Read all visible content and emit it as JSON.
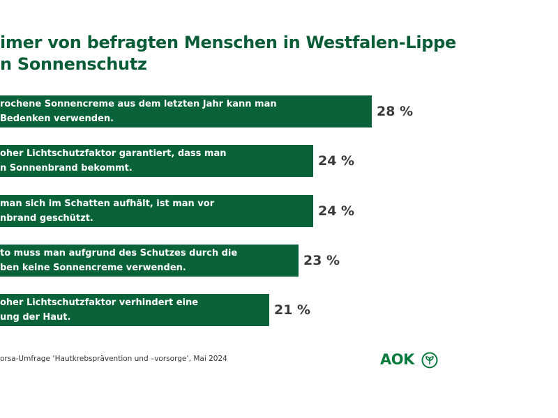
{
  "chart_data": {
    "type": "bar",
    "title": "imer von befragten Menschen in Westfalen-Lippe\nn Sonnenschutz",
    "categories": [
      "rochene Sonnencreme aus dem letzten Jahr kann man\nBedenken verwenden.",
      "oher Lichtschutzfaktor garantiert, dass man\nn Sonnenbrand bekommt.",
      " man sich im Schatten aufhält, ist man vor\nnbrand geschützt.",
      "to muss man aufgrund des Schutzes durch die\nben keine Sonnencreme verwenden.",
      "oher Lichtschutzfaktor verhindert eine\nung der Haut."
    ],
    "values": [
      28,
      24,
      24,
      23,
      21
    ],
    "value_labels": [
      "28 %",
      "24 %",
      "24 %",
      "23 %",
      "21 %"
    ],
    "color": "#0a6338",
    "source": "orsa-Umfrage ‘Hautkrebsprävention und –vorsorge’, Mai 2024",
    "logo": "AOK"
  }
}
